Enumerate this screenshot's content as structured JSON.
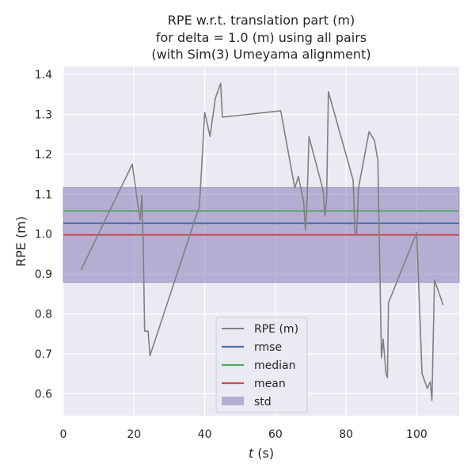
{
  "chart_data": {
    "type": "line",
    "title_lines": [
      "RPE w.r.t. translation part (m)",
      "for delta = 1.0 (m) using all pairs",
      "(with Sim(3) Umeyama alignment)"
    ],
    "xlabel_italic": "t",
    "xlabel_rest": " (s)",
    "ylabel": "RPE (m)",
    "xlim": [
      0,
      112
    ],
    "ylim": [
      0.545,
      1.42
    ],
    "xticks": [
      0,
      20,
      40,
      60,
      80,
      100
    ],
    "yticks": [
      0.6,
      0.7,
      0.8,
      0.9,
      1.0,
      1.1,
      1.2,
      1.3,
      1.4
    ],
    "ytick_labels": [
      "0.6",
      "0.7",
      "0.8",
      "0.9",
      "1.0",
      "1.1",
      "1.2",
      "1.3",
      "1.4"
    ],
    "grid": true,
    "legend_position": "bottom-center",
    "series": [
      {
        "name": "RPE (m)",
        "color": "#808080",
        "x": [
          5.0,
          19.5,
          21.3,
          21.8,
          22.2,
          22.6,
          23.0,
          24.0,
          24.5,
          38.5,
          40.0,
          41.5,
          43.0,
          44.5,
          45.0,
          61.5,
          65.5,
          66.5,
          68.0,
          68.5,
          69.0,
          69.5,
          73.5,
          74.0,
          74.5,
          75.0,
          82.0,
          82.5,
          83.0,
          83.5,
          86.5,
          88.0,
          88.8,
          89.0,
          90.0,
          90.5,
          91.3,
          91.7,
          92.0,
          100.0,
          101.5,
          102.5,
          103.0,
          103.8,
          104.3,
          105.0,
          107.5
        ],
        "y": [
          0.91,
          1.175,
          1.06,
          1.035,
          1.097,
          0.98,
          0.757,
          0.757,
          0.695,
          1.07,
          1.305,
          1.245,
          1.34,
          1.378,
          1.293,
          1.309,
          1.115,
          1.145,
          1.08,
          1.01,
          1.09,
          1.244,
          1.11,
          1.045,
          1.09,
          1.357,
          1.135,
          1.0,
          1.0,
          1.115,
          1.257,
          1.235,
          1.195,
          1.188,
          0.69,
          0.737,
          0.65,
          0.64,
          0.828,
          1.004,
          0.65,
          0.625,
          0.613,
          0.63,
          0.583,
          0.885,
          0.822
        ]
      },
      {
        "name": "rmse",
        "color": "#4c72b0",
        "value": 1.027
      },
      {
        "name": "median",
        "color": "#55a868",
        "value": 1.058
      },
      {
        "name": "mean",
        "color": "#c44e52",
        "value": 0.998
      },
      {
        "name": "std",
        "color": "#8172b2",
        "range": [
          0.879,
          1.117
        ]
      }
    ]
  }
}
